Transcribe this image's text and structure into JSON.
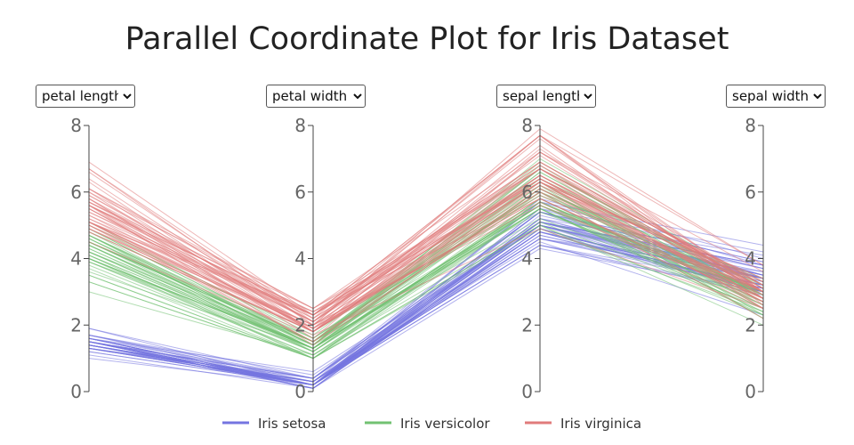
{
  "chart_data": {
    "type": "parallel-coordinates",
    "title": "Parallel Coordinate Plot for Iris Dataset",
    "axes": [
      {
        "name": "petal length",
        "options": [
          "petal length",
          "petal width",
          "sepal length",
          "sepal width"
        ]
      },
      {
        "name": "petal width",
        "options": [
          "petal length",
          "petal width",
          "sepal length",
          "sepal width"
        ]
      },
      {
        "name": "sepal length",
        "options": [
          "petal length",
          "petal width",
          "sepal length",
          "sepal width"
        ]
      },
      {
        "name": "sepal width",
        "options": [
          "petal length",
          "petal width",
          "sepal length",
          "sepal width"
        ]
      }
    ],
    "range": [
      0,
      8
    ],
    "ticks": [
      "0",
      "2",
      "4",
      "6",
      "8"
    ],
    "series": [
      {
        "name": "Iris setosa",
        "color": "#7474e0",
        "records": [
          [
            1.4,
            0.2,
            5.1,
            3.5
          ],
          [
            1.4,
            0.2,
            4.9,
            3.0
          ],
          [
            1.3,
            0.2,
            4.7,
            3.2
          ],
          [
            1.5,
            0.2,
            4.6,
            3.1
          ],
          [
            1.4,
            0.2,
            5.0,
            3.6
          ],
          [
            1.7,
            0.4,
            5.4,
            3.9
          ],
          [
            1.4,
            0.3,
            4.6,
            3.4
          ],
          [
            1.5,
            0.2,
            5.0,
            3.4
          ],
          [
            1.4,
            0.2,
            4.4,
            2.9
          ],
          [
            1.5,
            0.1,
            4.9,
            3.1
          ],
          [
            1.5,
            0.2,
            5.4,
            3.7
          ],
          [
            1.6,
            0.2,
            4.8,
            3.4
          ],
          [
            1.4,
            0.1,
            4.8,
            3.0
          ],
          [
            1.1,
            0.1,
            4.3,
            3.0
          ],
          [
            1.2,
            0.2,
            5.8,
            4.0
          ],
          [
            1.5,
            0.4,
            5.7,
            4.4
          ],
          [
            1.3,
            0.4,
            5.4,
            3.9
          ],
          [
            1.4,
            0.3,
            5.1,
            3.5
          ],
          [
            1.7,
            0.3,
            5.7,
            3.8
          ],
          [
            1.5,
            0.3,
            5.1,
            3.8
          ],
          [
            1.7,
            0.2,
            5.4,
            3.4
          ],
          [
            1.5,
            0.4,
            5.1,
            3.7
          ],
          [
            1.0,
            0.2,
            4.6,
            3.6
          ],
          [
            1.7,
            0.5,
            5.1,
            3.3
          ],
          [
            1.9,
            0.2,
            4.8,
            3.4
          ],
          [
            1.6,
            0.2,
            5.0,
            3.0
          ],
          [
            1.6,
            0.4,
            5.0,
            3.4
          ],
          [
            1.5,
            0.2,
            5.2,
            3.5
          ],
          [
            1.4,
            0.2,
            5.2,
            3.4
          ],
          [
            1.6,
            0.2,
            4.7,
            3.2
          ],
          [
            1.6,
            0.2,
            4.8,
            3.1
          ],
          [
            1.5,
            0.4,
            5.4,
            3.4
          ],
          [
            1.5,
            0.1,
            5.2,
            4.1
          ],
          [
            1.4,
            0.2,
            5.5,
            4.2
          ],
          [
            1.5,
            0.1,
            4.9,
            3.1
          ],
          [
            1.2,
            0.2,
            5.0,
            3.2
          ],
          [
            1.3,
            0.2,
            5.5,
            3.5
          ],
          [
            1.5,
            0.1,
            4.9,
            3.1
          ],
          [
            1.3,
            0.2,
            4.4,
            3.0
          ],
          [
            1.5,
            0.2,
            5.1,
            3.4
          ],
          [
            1.3,
            0.3,
            5.0,
            3.5
          ],
          [
            1.3,
            0.3,
            4.5,
            2.3
          ],
          [
            1.3,
            0.2,
            4.4,
            3.2
          ],
          [
            1.6,
            0.6,
            5.0,
            3.5
          ],
          [
            1.9,
            0.4,
            5.1,
            3.8
          ],
          [
            1.4,
            0.3,
            4.8,
            3.0
          ],
          [
            1.6,
            0.2,
            5.1,
            3.8
          ],
          [
            1.4,
            0.2,
            4.6,
            3.2
          ],
          [
            1.5,
            0.2,
            5.3,
            3.7
          ],
          [
            1.4,
            0.2,
            5.0,
            3.3
          ]
        ]
      },
      {
        "name": "Iris versicolor",
        "color": "#72c172",
        "records": [
          [
            4.7,
            1.4,
            7.0,
            3.2
          ],
          [
            4.5,
            1.5,
            6.4,
            3.2
          ],
          [
            4.9,
            1.5,
            6.9,
            3.1
          ],
          [
            4.0,
            1.3,
            5.5,
            2.3
          ],
          [
            4.6,
            1.5,
            6.5,
            2.8
          ],
          [
            4.5,
            1.3,
            5.7,
            2.8
          ],
          [
            4.7,
            1.6,
            6.3,
            3.3
          ],
          [
            3.3,
            1.0,
            4.9,
            2.4
          ],
          [
            4.6,
            1.3,
            6.6,
            2.9
          ],
          [
            3.9,
            1.4,
            5.2,
            2.7
          ],
          [
            3.5,
            1.0,
            5.0,
            2.0
          ],
          [
            4.2,
            1.5,
            5.9,
            3.0
          ],
          [
            4.0,
            1.0,
            6.0,
            2.2
          ],
          [
            4.7,
            1.4,
            6.1,
            2.9
          ],
          [
            3.6,
            1.3,
            5.6,
            2.9
          ],
          [
            4.4,
            1.4,
            6.7,
            3.1
          ],
          [
            4.5,
            1.5,
            5.6,
            3.0
          ],
          [
            4.1,
            1.0,
            5.8,
            2.7
          ],
          [
            4.5,
            1.5,
            6.2,
            2.2
          ],
          [
            3.9,
            1.1,
            5.6,
            2.5
          ],
          [
            4.8,
            1.8,
            5.9,
            3.2
          ],
          [
            4.0,
            1.3,
            6.1,
            2.8
          ],
          [
            4.9,
            1.5,
            6.3,
            2.5
          ],
          [
            4.7,
            1.2,
            6.1,
            2.8
          ],
          [
            4.3,
            1.3,
            6.4,
            2.9
          ],
          [
            4.4,
            1.4,
            6.6,
            3.0
          ],
          [
            4.8,
            1.4,
            6.8,
            2.8
          ],
          [
            5.0,
            1.7,
            6.7,
            3.0
          ],
          [
            4.5,
            1.5,
            6.0,
            2.9
          ],
          [
            3.5,
            1.0,
            5.7,
            2.6
          ],
          [
            3.8,
            1.1,
            5.5,
            2.4
          ],
          [
            3.7,
            1.0,
            5.5,
            2.4
          ],
          [
            3.9,
            1.2,
            5.8,
            2.7
          ],
          [
            5.1,
            1.6,
            6.0,
            2.7
          ],
          [
            4.5,
            1.5,
            5.4,
            3.0
          ],
          [
            4.5,
            1.6,
            6.0,
            3.4
          ],
          [
            4.7,
            1.5,
            6.7,
            3.1
          ],
          [
            4.4,
            1.3,
            6.3,
            2.3
          ],
          [
            4.1,
            1.3,
            5.6,
            3.0
          ],
          [
            4.0,
            1.3,
            5.5,
            2.5
          ],
          [
            4.4,
            1.2,
            5.5,
            2.6
          ],
          [
            4.6,
            1.4,
            6.1,
            3.0
          ],
          [
            4.0,
            1.2,
            5.8,
            2.6
          ],
          [
            3.3,
            1.0,
            5.0,
            2.3
          ],
          [
            4.2,
            1.3,
            5.6,
            2.7
          ],
          [
            4.2,
            1.2,
            5.7,
            3.0
          ],
          [
            4.2,
            1.3,
            5.7,
            2.9
          ],
          [
            4.3,
            1.3,
            6.2,
            2.9
          ],
          [
            3.0,
            1.1,
            5.1,
            2.5
          ],
          [
            4.1,
            1.3,
            5.7,
            2.8
          ]
        ]
      },
      {
        "name": "Iris virginica",
        "color": "#e07b7b",
        "records": [
          [
            6.0,
            2.5,
            6.3,
            3.3
          ],
          [
            5.1,
            1.9,
            5.8,
            2.7
          ],
          [
            5.9,
            2.1,
            7.1,
            3.0
          ],
          [
            5.6,
            1.8,
            6.3,
            2.9
          ],
          [
            5.8,
            2.2,
            6.5,
            3.0
          ],
          [
            6.6,
            2.1,
            7.6,
            3.0
          ],
          [
            4.5,
            1.7,
            4.9,
            2.5
          ],
          [
            6.3,
            1.8,
            7.3,
            2.9
          ],
          [
            5.8,
            1.8,
            6.7,
            2.5
          ],
          [
            6.1,
            2.5,
            7.2,
            3.6
          ],
          [
            5.1,
            2.0,
            6.5,
            3.2
          ],
          [
            5.3,
            1.9,
            6.4,
            2.7
          ],
          [
            5.5,
            2.1,
            6.8,
            3.0
          ],
          [
            5.0,
            2.0,
            5.7,
            2.5
          ],
          [
            5.1,
            2.4,
            5.8,
            2.8
          ],
          [
            5.3,
            2.3,
            6.4,
            3.2
          ],
          [
            5.5,
            1.8,
            6.5,
            3.0
          ],
          [
            6.7,
            2.2,
            7.7,
            3.8
          ],
          [
            6.9,
            2.3,
            7.7,
            2.6
          ],
          [
            5.0,
            1.5,
            6.0,
            2.2
          ],
          [
            5.7,
            2.3,
            6.9,
            3.2
          ],
          [
            4.9,
            2.0,
            5.6,
            2.8
          ],
          [
            6.7,
            2.0,
            7.7,
            2.8
          ],
          [
            4.9,
            1.8,
            6.3,
            2.7
          ],
          [
            5.7,
            2.1,
            6.7,
            3.3
          ],
          [
            6.0,
            1.8,
            7.2,
            3.2
          ],
          [
            4.8,
            1.8,
            6.2,
            2.8
          ],
          [
            4.9,
            1.8,
            6.1,
            3.0
          ],
          [
            5.6,
            2.1,
            6.4,
            2.8
          ],
          [
            5.8,
            1.6,
            7.2,
            3.0
          ],
          [
            6.1,
            1.9,
            7.4,
            2.8
          ],
          [
            6.4,
            2.0,
            7.9,
            3.8
          ],
          [
            5.6,
            2.2,
            6.4,
            2.8
          ],
          [
            5.1,
            1.5,
            6.3,
            2.8
          ],
          [
            5.6,
            1.4,
            6.1,
            2.6
          ],
          [
            6.1,
            2.3,
            7.7,
            3.0
          ],
          [
            5.6,
            2.4,
            6.3,
            3.4
          ],
          [
            5.5,
            1.8,
            6.4,
            3.1
          ],
          [
            4.8,
            1.8,
            6.0,
            3.0
          ],
          [
            5.4,
            2.1,
            6.9,
            3.1
          ],
          [
            5.6,
            2.4,
            6.7,
            3.1
          ],
          [
            5.1,
            2.3,
            6.9,
            3.1
          ],
          [
            5.1,
            1.9,
            5.8,
            2.7
          ],
          [
            5.9,
            2.3,
            6.8,
            3.2
          ],
          [
            5.7,
            2.5,
            6.7,
            3.3
          ],
          [
            5.2,
            2.3,
            6.7,
            3.0
          ],
          [
            5.0,
            1.9,
            6.3,
            2.5
          ],
          [
            5.2,
            2.0,
            6.5,
            3.0
          ],
          [
            5.4,
            2.3,
            6.2,
            3.4
          ],
          [
            5.1,
            1.8,
            5.9,
            3.0
          ]
        ]
      }
    ],
    "legend": {
      "placement": "bottom",
      "orientation": "horizontal"
    }
  }
}
